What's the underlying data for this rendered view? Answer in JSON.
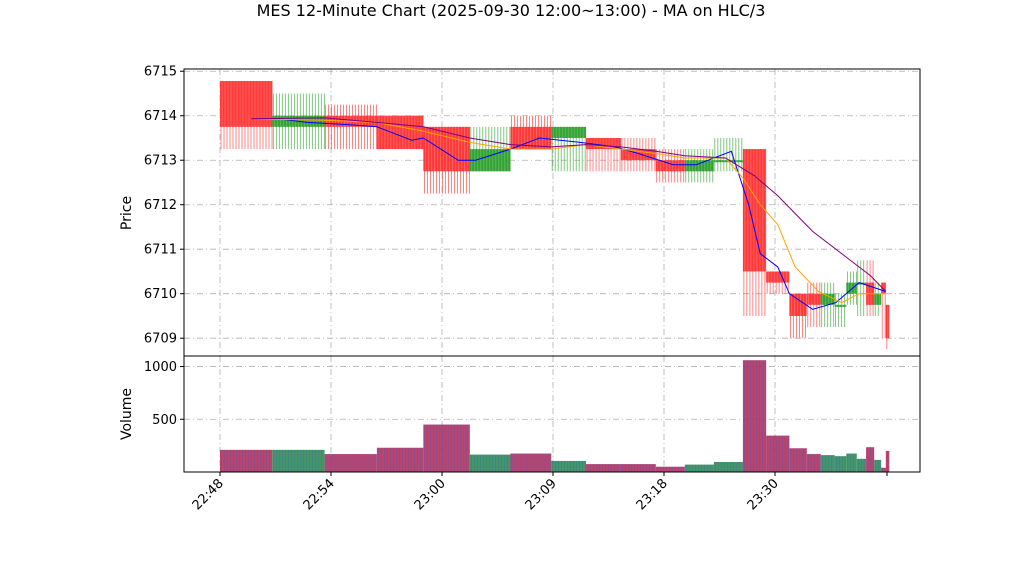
{
  "chart_data": {
    "type": "candlestick",
    "title": "MES 12-Minute Chart (2025-09-30 12:00~13:00) - MA on HLC/3",
    "colors": {
      "up": "#2ca02c",
      "down": "#ff3333",
      "ma_short": "#0000ff",
      "ma_mid": "#ffa500",
      "ma_long": "#800080",
      "grid": "#b0b0b0",
      "volume_bar": "#b03060"
    },
    "x_ticks": [
      "22:48",
      "22:54",
      "23:00",
      "23:09",
      "23:18",
      "23:30"
    ],
    "price_panel": {
      "ylabel": "Price",
      "ylim": [
        6708.6,
        6715.05
      ],
      "yticks": [
        6709,
        6710,
        6711,
        6712,
        6713,
        6714,
        6715
      ],
      "grid": true
    },
    "volume_panel": {
      "ylabel": "Volume",
      "ylim": [
        0,
        1100
      ],
      "yticks": [
        500,
        1000
      ],
      "grid": true
    },
    "candles": [
      {
        "x": 0,
        "w": 4.5,
        "open": 6714.78,
        "high": 6714.78,
        "low": 6713.25,
        "close": 6713.75,
        "volume": 210
      },
      {
        "x": 4.5,
        "w": 4.5,
        "open": 6713.75,
        "high": 6714.5,
        "low": 6713.25,
        "close": 6714.0,
        "volume": 210
      },
      {
        "x": 9,
        "w": 4.5,
        "open": 6714.0,
        "high": 6714.25,
        "low": 6713.25,
        "close": 6713.75,
        "volume": 170
      },
      {
        "x": 13.5,
        "w": 4,
        "open": 6714.0,
        "high": 6714.0,
        "low": 6713.25,
        "close": 6713.25,
        "volume": 230
      },
      {
        "x": 17.5,
        "w": 4,
        "open": 6713.75,
        "high": 6713.75,
        "low": 6712.25,
        "close": 6712.75,
        "volume": 450
      },
      {
        "x": 21.5,
        "w": 3.5,
        "open": 6712.75,
        "high": 6713.75,
        "low": 6712.75,
        "close": 6713.25,
        "volume": 165
      },
      {
        "x": 25,
        "w": 3.5,
        "open": 6713.75,
        "high": 6714.0,
        "low": 6713.25,
        "close": 6713.25,
        "volume": 175
      },
      {
        "x": 28.5,
        "w": 3,
        "open": 6713.5,
        "high": 6713.75,
        "low": 6712.75,
        "close": 6713.75,
        "volume": 105
      },
      {
        "x": 31.5,
        "w": 3,
        "open": 6713.5,
        "high": 6713.5,
        "low": 6712.75,
        "close": 6713.25,
        "volume": 75
      },
      {
        "x": 34.5,
        "w": 3,
        "open": 6713.25,
        "high": 6713.5,
        "low": 6712.75,
        "close": 6713.0,
        "volume": 75
      },
      {
        "x": 37.5,
        "w": 2.5,
        "open": 6713.0,
        "high": 6713.25,
        "low": 6712.5,
        "close": 6712.75,
        "volume": 50
      },
      {
        "x": 40,
        "w": 2.5,
        "open": 6712.75,
        "high": 6713.25,
        "low": 6712.5,
        "close": 6713.0,
        "volume": 70
      },
      {
        "x": 42.5,
        "w": 2.5,
        "open": 6713.0,
        "high": 6713.5,
        "low": 6712.75,
        "close": 6713.0,
        "volume": 95
      },
      {
        "x": 45,
        "w": 2,
        "open": 6713.25,
        "high": 6713.25,
        "low": 6709.5,
        "close": 6710.5,
        "volume": 1060
      },
      {
        "x": 47,
        "w": 2,
        "open": 6710.5,
        "high": 6710.5,
        "low": 6710.0,
        "close": 6710.25,
        "volume": 345
      },
      {
        "x": 49,
        "w": 1.5,
        "open": 6710.0,
        "high": 6710.0,
        "low": 6709.0,
        "close": 6709.5,
        "volume": 225
      },
      {
        "x": 50.5,
        "w": 1.2,
        "open": 6710.0,
        "high": 6710.25,
        "low": 6709.25,
        "close": 6709.75,
        "volume": 170
      },
      {
        "x": 51.7,
        "w": 1.2,
        "open": 6709.75,
        "high": 6710.25,
        "low": 6709.25,
        "close": 6710.0,
        "volume": 160
      },
      {
        "x": 52.9,
        "w": 1.0,
        "open": 6709.75,
        "high": 6710.0,
        "low": 6709.25,
        "close": 6709.75,
        "volume": 150
      },
      {
        "x": 53.9,
        "w": 0.9,
        "open": 6710.0,
        "high": 6710.5,
        "low": 6709.75,
        "close": 6710.25,
        "volume": 175
      },
      {
        "x": 54.8,
        "w": 0.8,
        "open": 6710.25,
        "high": 6710.75,
        "low": 6709.5,
        "close": 6710.25,
        "volume": 125
      },
      {
        "x": 55.6,
        "w": 0.7,
        "open": 6710.25,
        "high": 6710.75,
        "low": 6709.5,
        "close": 6709.75,
        "volume": 235
      },
      {
        "x": 56.3,
        "w": 0.6,
        "open": 6709.75,
        "high": 6710.25,
        "low": 6709.5,
        "close": 6710.0,
        "volume": 115
      },
      {
        "x": 56.9,
        "w": 0.4,
        "open": 6710.25,
        "high": 6710.25,
        "low": 6709.0,
        "close": 6710.0,
        "volume": 40
      },
      {
        "x": 57.3,
        "w": 0.3,
        "open": 6709.75,
        "high": 6709.75,
        "low": 6708.75,
        "close": 6709.0,
        "volume": 200
      }
    ],
    "ma_series": [
      {
        "key": "ma_short",
        "points": [
          [
            2.7,
            6713.93
          ],
          [
            5,
            6713.93
          ],
          [
            7.5,
            6713.85
          ],
          [
            11,
            6713.8
          ],
          [
            13.5,
            6713.75
          ],
          [
            16.5,
            6713.45
          ],
          [
            17.5,
            6713.5
          ],
          [
            20.5,
            6713.0
          ],
          [
            22,
            6713.0
          ],
          [
            25,
            6713.25
          ],
          [
            27.5,
            6713.5
          ],
          [
            31,
            6713.4
          ],
          [
            34,
            6713.3
          ],
          [
            36,
            6713.15
          ],
          [
            39,
            6712.9
          ],
          [
            41,
            6712.9
          ],
          [
            44,
            6713.2
          ],
          [
            45.5,
            6712.0
          ],
          [
            46.5,
            6710.9
          ],
          [
            48,
            6710.6
          ],
          [
            49,
            6710.0
          ],
          [
            51,
            6709.65
          ],
          [
            53,
            6709.8
          ],
          [
            55,
            6710.25
          ],
          [
            57.3,
            6710.05
          ]
        ]
      },
      {
        "key": "ma_mid",
        "points": [
          [
            2.7,
            6713.93
          ],
          [
            9,
            6713.9
          ],
          [
            13.5,
            6713.85
          ],
          [
            17.5,
            6713.65
          ],
          [
            21.5,
            6713.4
          ],
          [
            25,
            6713.25
          ],
          [
            28.5,
            6713.25
          ],
          [
            31.5,
            6713.35
          ],
          [
            34.5,
            6713.25
          ],
          [
            37.5,
            6713.15
          ],
          [
            40,
            6713.05
          ],
          [
            43.5,
            6713.05
          ],
          [
            45,
            6712.6
          ],
          [
            46.5,
            6712.0
          ],
          [
            48,
            6711.55
          ],
          [
            49.5,
            6710.6
          ],
          [
            51.5,
            6710.05
          ],
          [
            53.5,
            6709.8
          ],
          [
            55,
            6710.0
          ],
          [
            57.3,
            6710.0
          ]
        ]
      },
      {
        "key": "ma_long",
        "points": [
          [
            2.7,
            6713.93
          ],
          [
            9,
            6713.95
          ],
          [
            13.5,
            6713.85
          ],
          [
            17.5,
            6713.75
          ],
          [
            21.5,
            6713.5
          ],
          [
            25,
            6713.35
          ],
          [
            28.5,
            6713.3
          ],
          [
            31.5,
            6713.35
          ],
          [
            34.5,
            6713.3
          ],
          [
            37.5,
            6713.2
          ],
          [
            40,
            6713.1
          ],
          [
            43.5,
            6713.05
          ],
          [
            46,
            6712.65
          ],
          [
            48,
            6712.2
          ],
          [
            51,
            6711.4
          ],
          [
            54,
            6710.8
          ],
          [
            56,
            6710.4
          ],
          [
            57.3,
            6710.05
          ]
        ]
      }
    ]
  }
}
